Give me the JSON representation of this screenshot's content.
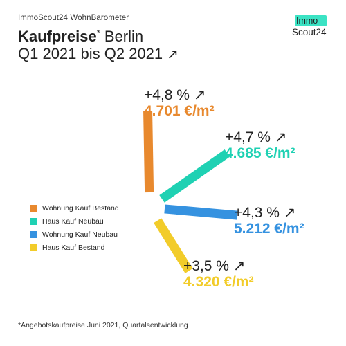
{
  "header": {
    "kicker": "ImmoScout24 WohnBarometer",
    "title_bold": "Kaufpreise",
    "title_mark": "*",
    "title_rest": " Berlin",
    "subtitle": "Q1 2021 bis Q2 2021",
    "arrow": "↗"
  },
  "logo": {
    "line1": "Immo",
    "line2": "Scout24",
    "accent": "#3be3c4"
  },
  "chart_data": {
    "type": "bar",
    "title": "Kaufpreise* Berlin Q1 2021 bis Q2 2021",
    "series": [
      {
        "name": "Wohnung Kauf Bestand",
        "change": "+4,8 %",
        "price": "4.701 €/m²",
        "change_value": 4.8,
        "price_value": 4701,
        "color": "#e8892e"
      },
      {
        "name": "Haus Kauf Neubau",
        "change": "+4,7 %",
        "price": "4.685 €/m²",
        "change_value": 4.7,
        "price_value": 4685,
        "color": "#1fd1b3"
      },
      {
        "name": "Wohnung Kauf Neubau",
        "change": "+4,3 %",
        "price": "5.212 €/m²",
        "change_value": 4.3,
        "price_value": 5212,
        "color": "#3592e0"
      },
      {
        "name": "Haus Kauf Bestand",
        "change": "+3,5 %",
        "price": "4.320 €/m²",
        "change_value": 3.5,
        "price_value": 4320,
        "color": "#f2cc2a"
      }
    ],
    "legend_position": "left"
  },
  "footnote": "*Angebotskaufpreise Juni 2021, Quartalsentwicklung"
}
